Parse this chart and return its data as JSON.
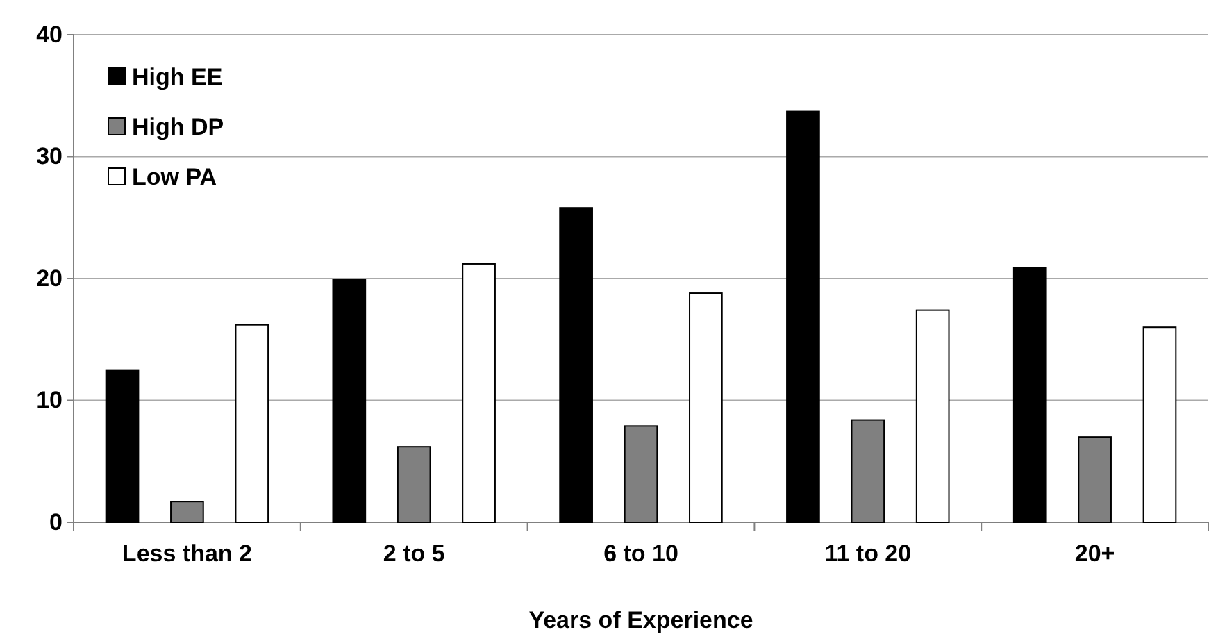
{
  "chart_data": {
    "type": "bar",
    "xlabel": "Years of Experience",
    "categories": [
      "Less than 2",
      "2 to 5",
      "6 to 10",
      "11 to 20",
      "20+"
    ],
    "series": [
      {
        "name": "High EE",
        "color": "#000000",
        "values": [
          12.5,
          19.9,
          25.8,
          33.7,
          20.9
        ]
      },
      {
        "name": "High DP",
        "color": "#808080",
        "values": [
          1.7,
          6.2,
          7.9,
          8.4,
          7.0
        ]
      },
      {
        "name": "Low PA",
        "color": "#ffffff",
        "values": [
          16.2,
          21.2,
          18.8,
          17.4,
          16.0
        ]
      }
    ],
    "ylim": [
      0,
      40
    ],
    "yticks": [
      0,
      10,
      20,
      30,
      40
    ],
    "grid": "y",
    "legend": "top left"
  }
}
